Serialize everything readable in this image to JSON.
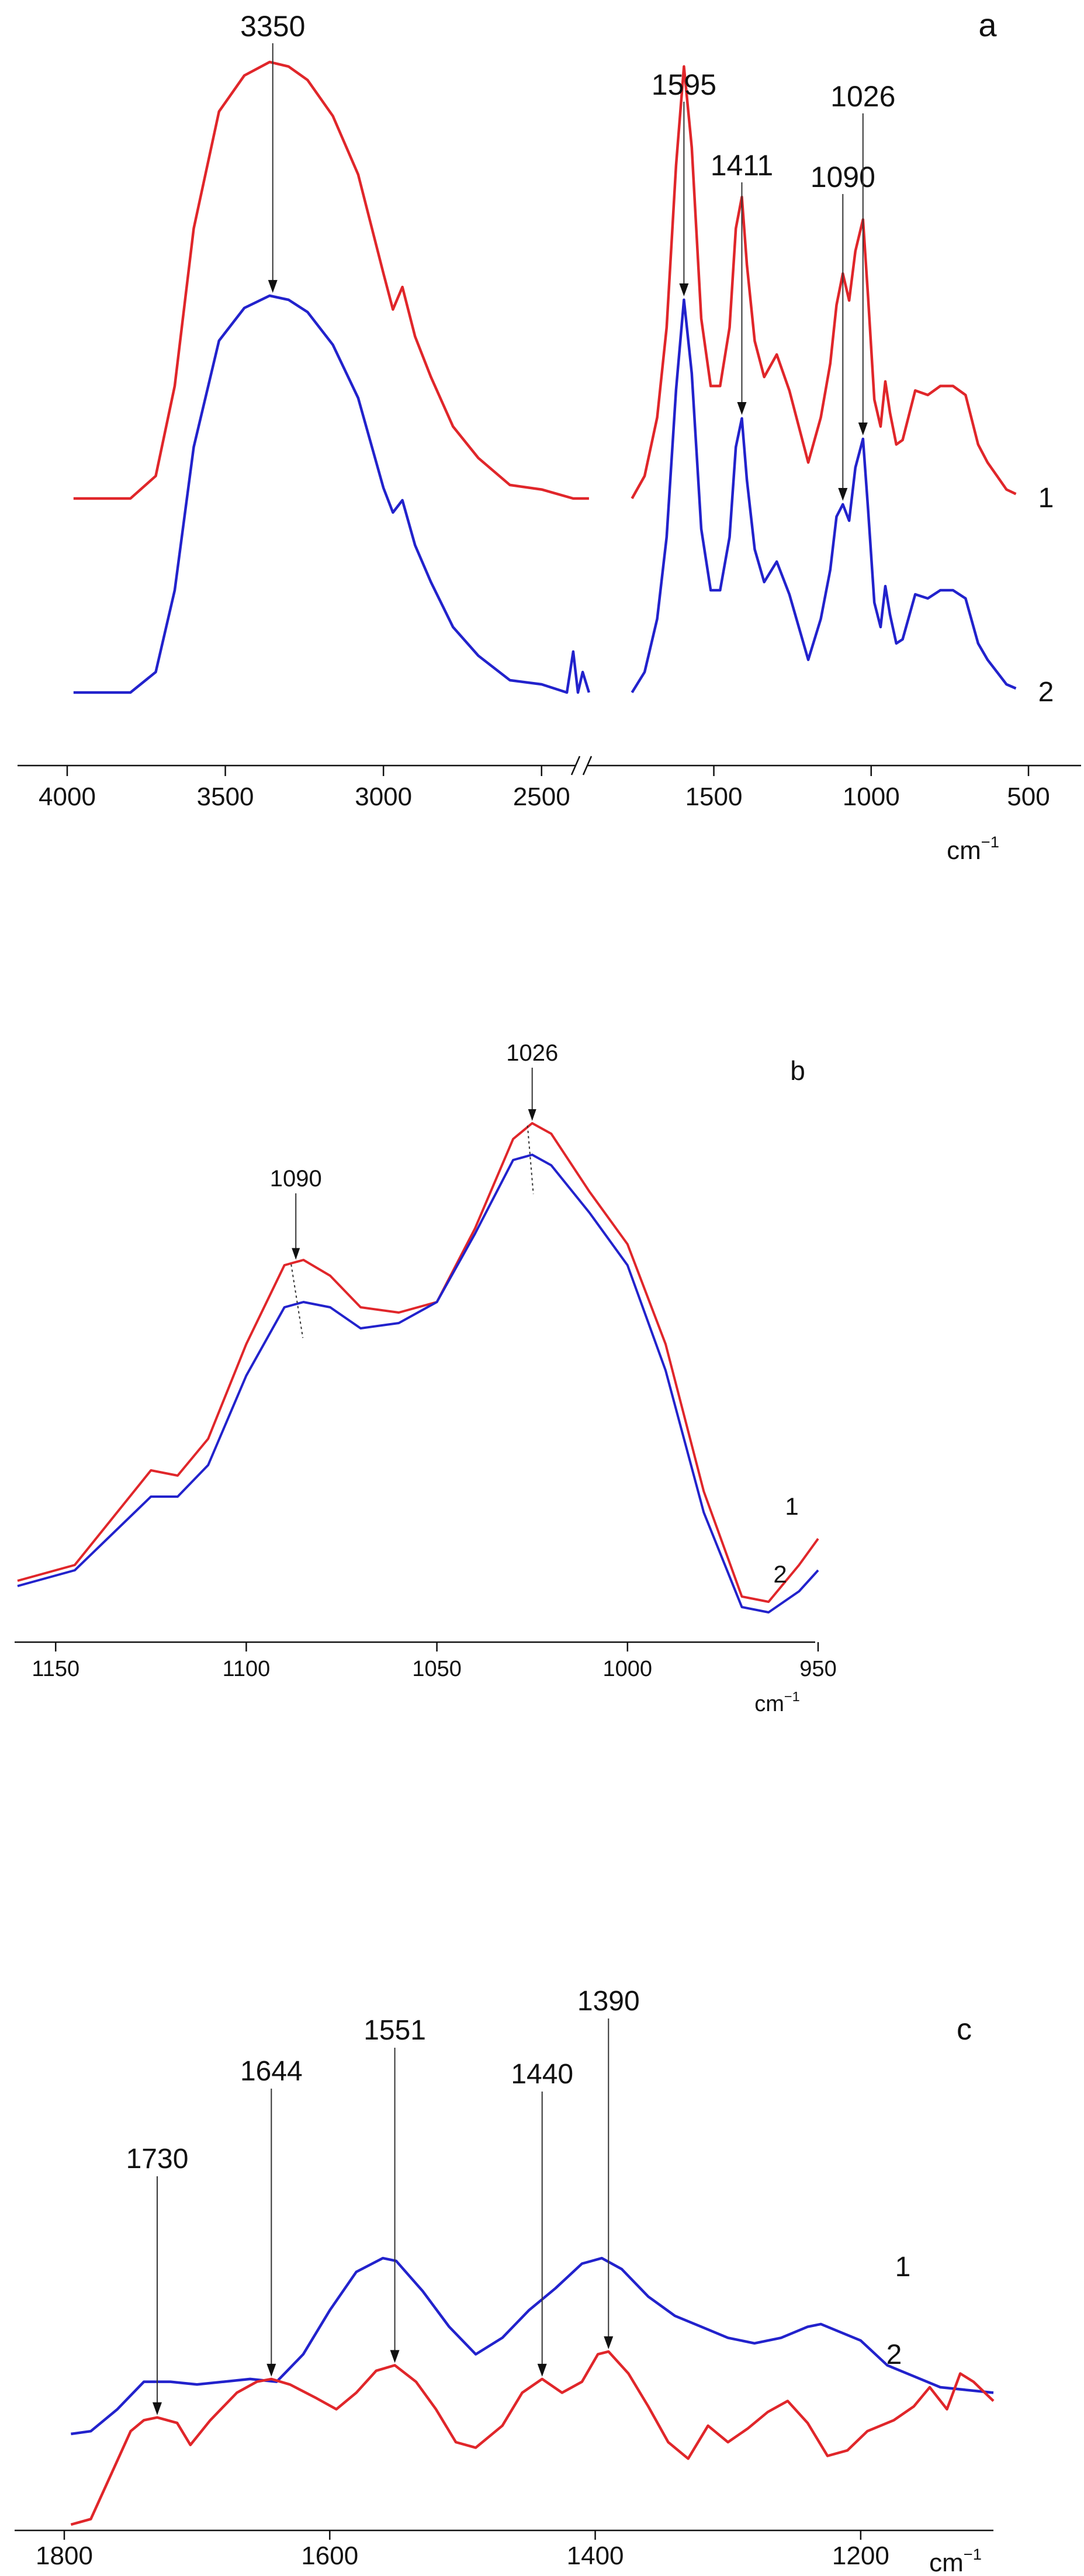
{
  "chart_data": [
    {
      "id": "a",
      "type": "line",
      "panel_label": "a",
      "xlabel": "cm⁻¹",
      "xlim": [
        4000,
        500
      ],
      "axis_break": {
        "left_segment": [
          4000,
          2300
        ],
        "right_segment": [
          1800,
          500
        ]
      },
      "tick_labels": [
        "4000",
        "3500",
        "3000",
        "2500",
        "1500",
        "1000",
        "500"
      ],
      "tick_values": [
        4000,
        3500,
        3000,
        2500,
        1500,
        1000,
        500
      ],
      "series": [
        {
          "label": "1",
          "color": "#e0262a",
          "x": [
            3980,
            3800,
            3720,
            3660,
            3600,
            3520,
            3440,
            3360,
            3300,
            3240,
            3160,
            3080,
            3000,
            2970,
            2940,
            2900,
            2850,
            2780,
            2700,
            2600,
            2500,
            2400,
            2350,
            1760,
            1720,
            1680,
            1650,
            1620,
            1595,
            1570,
            1540,
            1510,
            1480,
            1450,
            1430,
            1411,
            1395,
            1370,
            1340,
            1300,
            1260,
            1200,
            1160,
            1130,
            1110,
            1090,
            1070,
            1050,
            1026,
            1010,
            990,
            970,
            955,
            940,
            920,
            900,
            860,
            820,
            780,
            740,
            700,
            660,
            630,
            600,
            570,
            540
          ],
          "y": [
            0.0,
            0.0,
            0.05,
            0.25,
            0.6,
            0.86,
            0.94,
            0.97,
            0.96,
            0.93,
            0.85,
            0.72,
            0.5,
            0.42,
            0.47,
            0.36,
            0.27,
            0.16,
            0.09,
            0.03,
            0.02,
            0.0,
            0.0,
            0.0,
            0.05,
            0.18,
            0.38,
            0.74,
            0.96,
            0.78,
            0.4,
            0.25,
            0.25,
            0.38,
            0.6,
            0.67,
            0.52,
            0.35,
            0.27,
            0.32,
            0.24,
            0.08,
            0.18,
            0.3,
            0.43,
            0.5,
            0.44,
            0.55,
            0.62,
            0.45,
            0.22,
            0.16,
            0.26,
            0.19,
            0.12,
            0.13,
            0.24,
            0.23,
            0.25,
            0.25,
            0.23,
            0.12,
            0.08,
            0.05,
            0.02,
            0.01
          ]
        },
        {
          "label": "2",
          "color": "#2222cc",
          "x": [
            3980,
            3800,
            3720,
            3660,
            3600,
            3520,
            3440,
            3360,
            3300,
            3240,
            3160,
            3080,
            3000,
            2970,
            2940,
            2900,
            2850,
            2780,
            2700,
            2600,
            2500,
            2420,
            2400,
            2385,
            2370,
            2350,
            1760,
            1720,
            1680,
            1650,
            1620,
            1595,
            1570,
            1540,
            1510,
            1480,
            1450,
            1430,
            1411,
            1395,
            1370,
            1340,
            1300,
            1260,
            1200,
            1160,
            1130,
            1110,
            1090,
            1070,
            1050,
            1026,
            1010,
            990,
            970,
            955,
            940,
            920,
            900,
            860,
            820,
            780,
            740,
            700,
            660,
            630,
            600,
            570,
            540
          ],
          "y": [
            0.0,
            0.0,
            0.05,
            0.25,
            0.6,
            0.86,
            0.94,
            0.97,
            0.96,
            0.93,
            0.85,
            0.72,
            0.5,
            0.44,
            0.47,
            0.36,
            0.27,
            0.16,
            0.09,
            0.03,
            0.02,
            0.0,
            0.1,
            0.0,
            0.05,
            0.0,
            0.0,
            0.05,
            0.18,
            0.38,
            0.74,
            0.96,
            0.78,
            0.4,
            0.25,
            0.25,
            0.38,
            0.6,
            0.67,
            0.52,
            0.35,
            0.27,
            0.32,
            0.24,
            0.08,
            0.18,
            0.3,
            0.43,
            0.46,
            0.42,
            0.55,
            0.62,
            0.45,
            0.22,
            0.16,
            0.26,
            0.19,
            0.12,
            0.13,
            0.24,
            0.23,
            0.25,
            0.25,
            0.23,
            0.12,
            0.08,
            0.05,
            0.02,
            0.01
          ]
        }
      ],
      "annotations": [
        {
          "label": "3350",
          "x": 3350
        },
        {
          "label": "1595",
          "x": 1595
        },
        {
          "label": "1411",
          "x": 1411
        },
        {
          "label": "1090",
          "x": 1090
        },
        {
          "label": "1026",
          "x": 1026
        }
      ]
    },
    {
      "id": "b",
      "type": "line",
      "panel_label": "b",
      "xlabel": "cm⁻¹",
      "xlim": [
        1160,
        950
      ],
      "tick_labels": [
        "1150",
        "1100",
        "1050",
        "1000",
        "950"
      ],
      "tick_values": [
        1150,
        1100,
        1050,
        1000,
        950
      ],
      "series": [
        {
          "label": "1",
          "color": "#e0262a",
          "x": [
            1160,
            1145,
            1135,
            1125,
            1118,
            1110,
            1100,
            1090,
            1085,
            1078,
            1070,
            1060,
            1050,
            1040,
            1030,
            1025,
            1020,
            1010,
            1000,
            990,
            980,
            970,
            963,
            955,
            950
          ],
          "y": [
            0.0,
            0.03,
            0.12,
            0.21,
            0.2,
            0.27,
            0.45,
            0.6,
            0.61,
            0.58,
            0.52,
            0.51,
            0.53,
            0.67,
            0.84,
            0.87,
            0.85,
            0.74,
            0.64,
            0.45,
            0.17,
            -0.03,
            -0.04,
            0.03,
            0.08
          ]
        },
        {
          "label": "2",
          "color": "#2222cc",
          "x": [
            1160,
            1145,
            1135,
            1125,
            1118,
            1110,
            1100,
            1090,
            1085,
            1078,
            1070,
            1060,
            1050,
            1040,
            1030,
            1025,
            1020,
            1010,
            1000,
            990,
            980,
            970,
            963,
            955,
            950
          ],
          "y": [
            -0.01,
            0.02,
            0.09,
            0.16,
            0.16,
            0.22,
            0.39,
            0.52,
            0.53,
            0.52,
            0.48,
            0.49,
            0.53,
            0.66,
            0.8,
            0.81,
            0.79,
            0.7,
            0.6,
            0.4,
            0.13,
            -0.05,
            -0.06,
            -0.02,
            0.02
          ]
        }
      ],
      "annotations": [
        {
          "label": "1090",
          "x": 1087
        },
        {
          "label": "1026",
          "x": 1025
        }
      ]
    },
    {
      "id": "c",
      "type": "line",
      "panel_label": "c",
      "xlabel": "cm⁻¹",
      "xlim": [
        1800,
        1100
      ],
      "tick_labels": [
        "1800",
        "1600",
        "1400",
        "1200"
      ],
      "tick_values": [
        1800,
        1600,
        1400,
        1200
      ],
      "series": [
        {
          "label": "1",
          "color": "#2222cc",
          "x": [
            1795,
            1780,
            1760,
            1740,
            1720,
            1700,
            1680,
            1660,
            1640,
            1620,
            1600,
            1580,
            1560,
            1550,
            1530,
            1510,
            1490,
            1470,
            1450,
            1430,
            1410,
            1395,
            1380,
            1360,
            1340,
            1320,
            1300,
            1280,
            1260,
            1240,
            1230,
            1200,
            1180,
            1160,
            1140,
            1120,
            1100
          ],
          "y": [
            0.33,
            0.34,
            0.42,
            0.52,
            0.52,
            0.51,
            0.52,
            0.53,
            0.52,
            0.62,
            0.78,
            0.92,
            0.97,
            0.96,
            0.85,
            0.72,
            0.62,
            0.68,
            0.78,
            0.86,
            0.95,
            0.97,
            0.93,
            0.83,
            0.76,
            0.72,
            0.68,
            0.66,
            0.68,
            0.72,
            0.73,
            0.67,
            0.58,
            0.54,
            0.5,
            0.49,
            0.48
          ]
        },
        {
          "label": "2",
          "color": "#e0262a",
          "x": [
            1795,
            1780,
            1765,
            1750,
            1740,
            1730,
            1715,
            1705,
            1690,
            1670,
            1655,
            1644,
            1630,
            1610,
            1595,
            1580,
            1565,
            1551,
            1535,
            1520,
            1505,
            1490,
            1470,
            1455,
            1440,
            1425,
            1410,
            1398,
            1390,
            1375,
            1360,
            1345,
            1330,
            1315,
            1300,
            1285,
            1270,
            1255,
            1240,
            1225,
            1210,
            1195,
            1175,
            1160,
            1148,
            1135,
            1125,
            1115,
            1100
          ],
          "y": [
            0.0,
            0.02,
            0.18,
            0.34,
            0.38,
            0.39,
            0.37,
            0.29,
            0.38,
            0.48,
            0.52,
            0.53,
            0.51,
            0.46,
            0.42,
            0.48,
            0.56,
            0.58,
            0.52,
            0.42,
            0.3,
            0.28,
            0.36,
            0.48,
            0.53,
            0.48,
            0.52,
            0.62,
            0.63,
            0.55,
            0.43,
            0.3,
            0.24,
            0.36,
            0.3,
            0.35,
            0.41,
            0.45,
            0.37,
            0.25,
            0.27,
            0.34,
            0.38,
            0.43,
            0.5,
            0.42,
            0.55,
            0.52,
            0.45
          ]
        }
      ],
      "annotations": [
        {
          "label": "1730",
          "x": 1730
        },
        {
          "label": "1644",
          "x": 1644
        },
        {
          "label": "1551",
          "x": 1551
        },
        {
          "label": "1440",
          "x": 1440
        },
        {
          "label": "1390",
          "x": 1390
        }
      ]
    }
  ]
}
